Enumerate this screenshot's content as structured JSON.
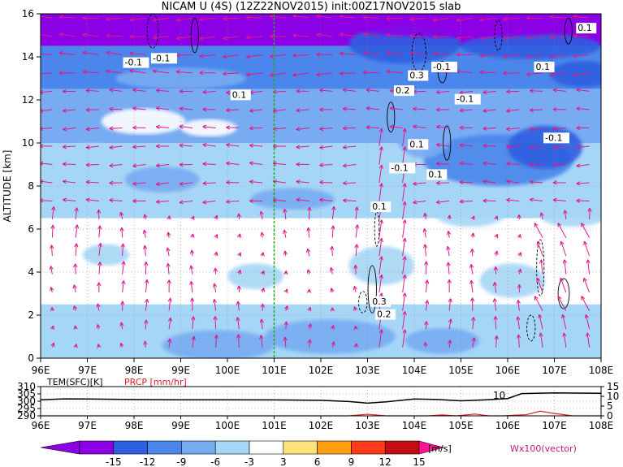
{
  "title": "NICAM U (4S) (12Z22NOV2015) init:00Z17NOV2015 slab",
  "chart_data": [
    {
      "type": "heatmap",
      "ylabel": "ALTITUDE [km]",
      "xlim": [
        96,
        108
      ],
      "ylim": [
        0,
        16
      ],
      "x_ticks": [
        "96E",
        "97E",
        "98E",
        "99E",
        "100E",
        "101E",
        "102E",
        "103E",
        "104E",
        "105E",
        "106E",
        "107E",
        "108E"
      ],
      "y_ticks": [
        "0",
        "2",
        "4",
        "6",
        "8",
        "10",
        "12",
        "14",
        "16"
      ],
      "grid": true,
      "marker_line_x": 101,
      "bands": [
        {
          "from": 14.5,
          "to": 16,
          "value": -15
        },
        {
          "from": 12.5,
          "to": 14.5,
          "value": -9
        },
        {
          "from": 10,
          "to": 12.5,
          "value": -6
        },
        {
          "from": 6.5,
          "to": 10,
          "value": -3
        },
        {
          "from": 2.5,
          "to": 6.5,
          "value": 0
        },
        {
          "from": 0,
          "to": 2.5,
          "value": -3
        }
      ],
      "contour_labels": [
        {
          "text": "-0.1",
          "x": 97.8,
          "y": 13.6
        },
        {
          "text": "-0.1",
          "x": 98.4,
          "y": 13.8
        },
        {
          "text": "0.1",
          "x": 100.1,
          "y": 12.1
        },
        {
          "text": "0.1",
          "x": 107.5,
          "y": 15.2
        },
        {
          "text": "0.1",
          "x": 106.6,
          "y": 13.4
        },
        {
          "text": "-0.1",
          "x": 104.4,
          "y": 13.4
        },
        {
          "text": "0.3",
          "x": 103.9,
          "y": 13.0
        },
        {
          "text": "0.2",
          "x": 103.6,
          "y": 12.3
        },
        {
          "text": "-0.1",
          "x": 104.9,
          "y": 11.9
        },
        {
          "text": "-0.1",
          "x": 106.8,
          "y": 10.1
        },
        {
          "text": "0.1",
          "x": 103.9,
          "y": 9.8
        },
        {
          "text": "-0.1",
          "x": 103.5,
          "y": 8.7
        },
        {
          "text": "0.1",
          "x": 104.3,
          "y": 8.4
        },
        {
          "text": "0.1",
          "x": 103.1,
          "y": 6.9
        },
        {
          "text": "0.3",
          "x": 103.1,
          "y": 2.5
        },
        {
          "text": "0.2",
          "x": 103.2,
          "y": 1.9
        }
      ],
      "vector_label": "Wx100(vector)"
    },
    {
      "type": "line",
      "xlim": [
        96,
        108
      ],
      "left_axis": {
        "label": "TEM(SFC)[K]",
        "ticks": [
          "310",
          "305",
          "300",
          "295",
          "290"
        ],
        "range": [
          290,
          310
        ]
      },
      "right_axis": {
        "label": "PRCP [mm/hr]",
        "ticks": [
          "15",
          "10",
          "5",
          "0"
        ],
        "range": [
          0,
          15
        ]
      },
      "x_ticks": [
        "96E",
        "97E",
        "98E",
        "99E",
        "100E",
        "101E",
        "102E",
        "103E",
        "104E",
        "105E",
        "106E",
        "107E",
        "108E"
      ],
      "series": [
        {
          "name": "TEM(SFC)[K]",
          "x": [
            96,
            96.5,
            97,
            98,
            99,
            100,
            101,
            102,
            102.6,
            103,
            103.4,
            104,
            104.5,
            105,
            105.5,
            106,
            106.3,
            107,
            108
          ],
          "y": [
            301,
            301.6,
            301.5,
            301.2,
            301,
            301,
            300.9,
            300.6,
            299.8,
            298.7,
            299.6,
            301.5,
            301.2,
            300.3,
            300.9,
            301.8,
            305.2,
            305.7,
            305.4
          ]
        },
        {
          "name": "PRCP [mm/hr]",
          "x": [
            96,
            102.6,
            103.0,
            103.4,
            104.3,
            104.6,
            104.9,
            105.3,
            105.6,
            105.9,
            106.4,
            106.7,
            107.0,
            107.4,
            108
          ],
          "y": [
            0,
            0,
            0.8,
            0,
            0,
            0.5,
            0,
            0.9,
            0,
            0,
            0.6,
            2.4,
            1.2,
            0,
            0
          ]
        }
      ],
      "annotations": [
        "10"
      ]
    }
  ],
  "colorbar": {
    "ticks": [
      "-15",
      "-12",
      "-9",
      "-6",
      "-3",
      "3",
      "6",
      "9",
      "12",
      "15"
    ],
    "unit": "[m/s]",
    "colors": [
      "#8c00e6",
      "#2e5fe0",
      "#4a86ec",
      "#78acf2",
      "#a6d6f6",
      "#ffffff",
      "#fce47a",
      "#ff9f10",
      "#ff3c1a",
      "#c40c14"
    ],
    "arrow_left": "#8c00e6",
    "arrow_right": "#ff1493"
  }
}
